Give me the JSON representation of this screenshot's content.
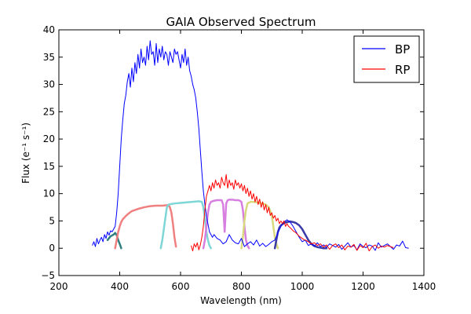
{
  "chart_data": {
    "type": "line",
    "title": "GAIA Observed Spectrum",
    "xlabel": "Wavelength (nm)",
    "ylabel": "Flux (e⁻¹ s⁻¹)",
    "xlim": [
      200,
      1400
    ],
    "ylim": [
      -5,
      40
    ],
    "xticks": [
      200,
      400,
      600,
      800,
      1000,
      1200,
      1400
    ],
    "yticks": [
      -5,
      0,
      5,
      10,
      15,
      20,
      25,
      30,
      35,
      40
    ],
    "xtick_labels": [
      "200",
      "400",
      "600",
      "800",
      "1000",
      "1200",
      "1400"
    ],
    "ytick_labels": [
      "−5",
      "0",
      "5",
      "10",
      "15",
      "20",
      "25",
      "30",
      "35",
      "40"
    ],
    "grid": false,
    "legend": {
      "position": "top-right",
      "entries": [
        "BP",
        "RP"
      ]
    },
    "series": [
      {
        "name": "BP",
        "color": "#0000ff",
        "x": [
          310,
          315,
          320,
          325,
          330,
          335,
          340,
          345,
          350,
          355,
          360,
          365,
          370,
          375,
          380,
          385,
          390,
          395,
          400,
          405,
          410,
          415,
          420,
          425,
          430,
          435,
          440,
          445,
          450,
          455,
          460,
          465,
          470,
          475,
          480,
          485,
          490,
          495,
          500,
          505,
          510,
          515,
          520,
          525,
          530,
          535,
          540,
          545,
          550,
          555,
          560,
          565,
          570,
          575,
          580,
          585,
          590,
          595,
          600,
          605,
          610,
          615,
          620,
          625,
          630,
          635,
          640,
          645,
          650,
          655,
          660,
          665,
          670,
          675,
          680,
          685,
          690,
          695,
          700,
          705,
          710,
          720,
          730,
          740,
          750,
          760,
          770,
          780,
          790,
          800,
          810,
          820,
          830,
          840,
          850,
          860,
          870,
          880,
          890,
          900,
          910,
          920,
          930,
          940,
          950,
          960,
          970,
          980,
          990,
          1000,
          1010,
          1020,
          1030,
          1040,
          1050,
          1060,
          1070,
          1080,
          1090,
          1100,
          1110,
          1120,
          1130,
          1140,
          1150,
          1160,
          1170,
          1180,
          1190,
          1200,
          1210,
          1220,
          1230,
          1240,
          1250,
          1260,
          1270,
          1280,
          1290,
          1300,
          1310,
          1320,
          1330,
          1340,
          1350
        ],
        "y": [
          0.5,
          1.2,
          0.3,
          1.8,
          0.8,
          1.5,
          2.0,
          1.2,
          2.5,
          1.8,
          3.0,
          2.4,
          3.2,
          3.0,
          3.5,
          4.0,
          6.5,
          10.0,
          15.0,
          20.0,
          23.5,
          26.5,
          28.0,
          30.5,
          32.0,
          29.5,
          33.0,
          30.5,
          34.0,
          32.0,
          35.5,
          33.0,
          36.5,
          34.0,
          35.0,
          33.5,
          37.0,
          34.5,
          38.0,
          35.5,
          36.0,
          33.5,
          37.5,
          34.0,
          36.5,
          35.0,
          37.0,
          34.5,
          36.0,
          35.5,
          33.5,
          36.0,
          35.0,
          34.0,
          36.5,
          35.5,
          36.0,
          34.5,
          33.0,
          35.5,
          34.0,
          36.5,
          33.5,
          35.0,
          32.5,
          31.5,
          30.0,
          29.0,
          27.5,
          25.0,
          22.0,
          18.0,
          14.0,
          10.5,
          8.0,
          6.0,
          4.5,
          3.0,
          2.5,
          2.0,
          2.5,
          1.8,
          1.5,
          0.8,
          1.2,
          2.5,
          1.5,
          1.0,
          0.8,
          1.8,
          0.3,
          0.8,
          1.2,
          0.6,
          1.5,
          0.4,
          0.9,
          0.3,
          0.7,
          1.2,
          1.5,
          2.8,
          4.0,
          4.8,
          5.2,
          4.8,
          4.0,
          3.0,
          2.0,
          1.2,
          1.5,
          0.5,
          0.8,
          0.4,
          1.0,
          0.3,
          0.6,
          0.2,
          0.8,
          0.5,
          0.2,
          0.7,
          -0.2,
          0.4,
          1.0,
          0.2,
          0.5,
          -0.3,
          0.8,
          0.3,
          0.1,
          0.6,
          0.4,
          -0.4,
          1.0,
          0.2,
          0.5,
          0.8,
          0.3,
          -0.2,
          0.6,
          0.4,
          1.3,
          0.1,
          0.0
        ]
      },
      {
        "name": "RP",
        "color": "#ff0000",
        "x": [
          635,
          640,
          645,
          650,
          655,
          660,
          665,
          670,
          675,
          680,
          685,
          690,
          695,
          700,
          705,
          710,
          715,
          720,
          725,
          730,
          735,
          740,
          745,
          750,
          755,
          760,
          765,
          770,
          775,
          780,
          785,
          790,
          795,
          800,
          805,
          810,
          815,
          820,
          825,
          830,
          835,
          840,
          845,
          850,
          855,
          860,
          865,
          870,
          875,
          880,
          885,
          890,
          895,
          900,
          905,
          910,
          915,
          920,
          925,
          930,
          935,
          940,
          945,
          950,
          955,
          960,
          965,
          970,
          975,
          980,
          985,
          990,
          995,
          1000,
          1005,
          1010,
          1020,
          1030,
          1040,
          1050,
          1060,
          1070,
          1080,
          1090,
          1100,
          1110,
          1120,
          1130,
          1140,
          1150,
          1160,
          1170,
          1180,
          1190,
          1200,
          1210,
          1220,
          1230,
          1240,
          1250,
          1260,
          1270,
          1280,
          1290,
          1300
        ],
        "y": [
          0.5,
          -0.5,
          0.8,
          0.2,
          1.0,
          -0.3,
          0.6,
          2.0,
          4.0,
          7.0,
          9.5,
          10.5,
          11.5,
          10.5,
          12.0,
          11.0,
          12.5,
          11.5,
          12.0,
          11.0,
          13.0,
          12.0,
          11.5,
          13.5,
          11.0,
          12.5,
          11.5,
          12.0,
          10.8,
          12.5,
          11.5,
          12.0,
          11.0,
          11.8,
          10.5,
          11.5,
          10.0,
          11.0,
          9.5,
          10.5,
          9.0,
          10.0,
          8.5,
          9.5,
          8.0,
          9.0,
          7.5,
          8.5,
          7.0,
          8.0,
          6.5,
          7.5,
          6.0,
          6.5,
          5.5,
          6.0,
          5.0,
          5.5,
          4.5,
          5.0,
          4.5,
          5.0,
          4.0,
          4.5,
          4.0,
          3.8,
          3.5,
          3.2,
          3.0,
          2.8,
          2.5,
          2.2,
          2.0,
          1.8,
          1.6,
          1.5,
          1.2,
          0.8,
          1.0,
          0.5,
          0.8,
          0.2,
          0.6,
          -0.2,
          0.5,
          0.8,
          0.1,
          0.6,
          -0.3,
          0.4,
          0.2,
          0.7,
          -0.4,
          0.5,
          0.1,
          0.9,
          -0.5,
          0.3,
          0.6,
          0.0,
          0.4,
          0.2,
          0.5,
          0.3,
          0.1
        ]
      }
    ],
    "filter_curves": [
      {
        "color": "#2f7f7f",
        "x": [
          360,
          370,
          380,
          385,
          390,
          395,
          400,
          405
        ],
        "y": [
          1.5,
          2.2,
          2.5,
          2.8,
          2.4,
          1.5,
          0.8,
          0.0
        ]
      },
      {
        "color": "#f08080",
        "x": [
          385,
          390,
          395,
          400,
          405,
          410,
          420,
          430,
          440,
          460,
          480,
          500,
          520,
          540,
          560,
          565,
          570,
          575,
          580,
          585
        ],
        "y": [
          0.0,
          1.5,
          3.0,
          4.0,
          4.8,
          5.3,
          5.9,
          6.4,
          6.8,
          7.2,
          7.5,
          7.7,
          7.8,
          7.8,
          7.9,
          7.5,
          6.5,
          4.5,
          2.0,
          0.3
        ]
      },
      {
        "color": "#7fd6d6",
        "x": [
          535,
          540,
          545,
          550,
          555,
          560,
          570,
          580,
          600,
          620,
          640,
          660,
          670,
          675,
          680,
          685,
          690,
          695,
          700
        ],
        "y": [
          0.0,
          1.5,
          3.5,
          5.5,
          7.5,
          8.0,
          8.1,
          8.2,
          8.3,
          8.4,
          8.5,
          8.6,
          8.5,
          7.5,
          5.5,
          3.0,
          1.5,
          0.5,
          0.0
        ]
      },
      {
        "color": "#d77fe0",
        "x": [
          675,
          680,
          685,
          690,
          695,
          700,
          705,
          710,
          720,
          730,
          735,
          740,
          745,
          750,
          755,
          760,
          770,
          780,
          790,
          795,
          800,
          805,
          810,
          815,
          820,
          825
        ],
        "y": [
          0.0,
          1.5,
          4.0,
          6.5,
          8.0,
          8.5,
          8.6,
          8.7,
          8.8,
          8.8,
          8.8,
          8.0,
          3.0,
          8.2,
          8.8,
          8.9,
          8.9,
          8.8,
          8.8,
          8.7,
          8.5,
          7.0,
          4.0,
          1.5,
          0.5,
          0.0
        ]
      },
      {
        "color": "#d8d87f",
        "x": [
          800,
          805,
          810,
          815,
          820,
          830,
          840,
          850,
          860,
          870,
          880,
          890,
          900,
          905,
          910,
          915,
          920
        ],
        "y": [
          0.0,
          2.0,
          5.0,
          7.0,
          8.2,
          8.5,
          8.5,
          8.4,
          8.3,
          8.2,
          8.0,
          7.5,
          6.0,
          4.0,
          2.0,
          0.8,
          0.0
        ]
      },
      {
        "color": "#3a3aa8",
        "x": [
          910,
          915,
          920,
          925,
          930,
          940,
          950,
          960,
          970,
          980,
          990,
          1000,
          1010,
          1020,
          1030,
          1040,
          1050,
          1060,
          1070,
          1080
        ],
        "y": [
          0.0,
          1.5,
          3.0,
          3.8,
          4.2,
          4.6,
          4.8,
          4.9,
          4.8,
          4.6,
          4.2,
          3.5,
          2.5,
          1.5,
          0.8,
          0.4,
          0.2,
          0.1,
          0.0,
          0.0
        ]
      }
    ]
  }
}
